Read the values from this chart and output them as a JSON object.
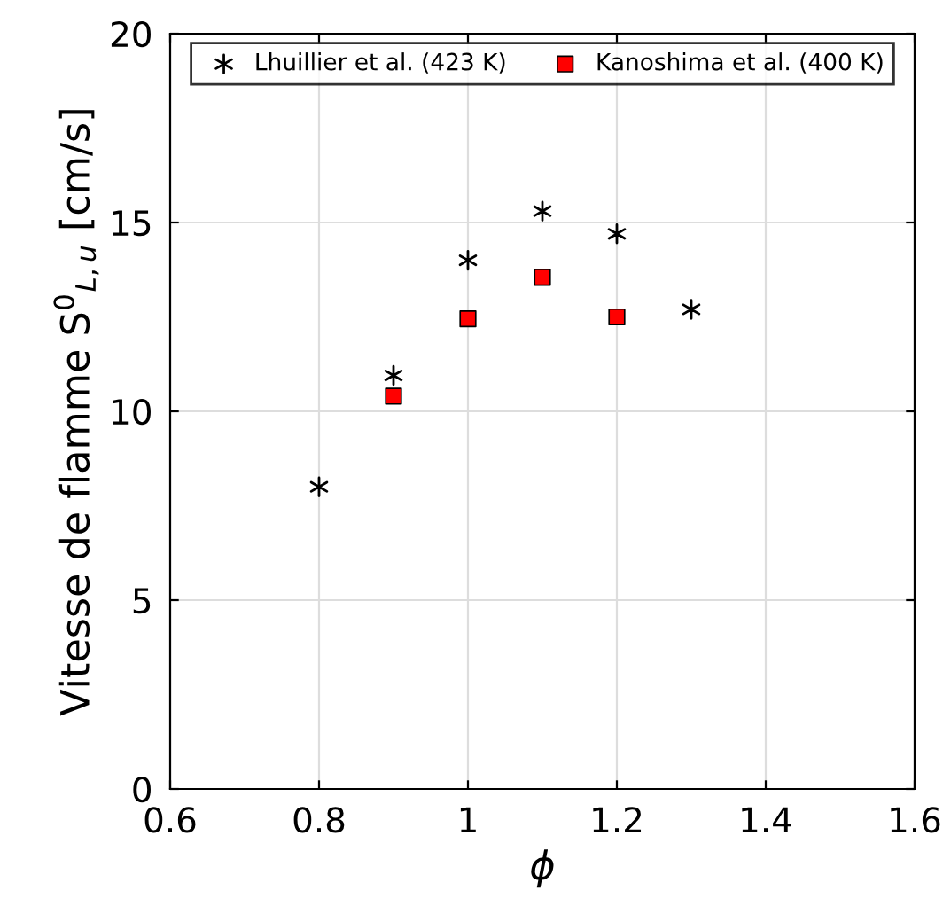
{
  "chart_data": {
    "type": "scatter",
    "xlabel": "ϕ",
    "ylabel": "Vitesse de flamme S$^{0}$$_{L,u}$ [cm/s]",
    "series": [
      {
        "name": "Lhuillier et al. (423 K)",
        "color": "#000000",
        "marker": "cross",
        "x": [
          0.8,
          0.9,
          1.0,
          1.1,
          1.2,
          1.3
        ],
        "values": [
          8.0,
          10.95,
          14.0,
          15.3,
          14.7,
          12.7
        ]
      },
      {
        "name": "Kanoshima et al. (400 K)",
        "color": "#ff0000",
        "marker": "square",
        "x": [
          0.9,
          1.0,
          1.1,
          1.2
        ],
        "values": [
          10.4,
          12.45,
          13.55,
          12.5
        ]
      }
    ],
    "xlim": [
      0.6,
      1.6
    ],
    "xticks": [
      0.6,
      0.8,
      1,
      1.2,
      1.4,
      1.6
    ],
    "ylim": [
      0,
      20
    ],
    "yticks": [
      0,
      5,
      10,
      15,
      20
    ],
    "grid": true,
    "legend": "top"
  }
}
